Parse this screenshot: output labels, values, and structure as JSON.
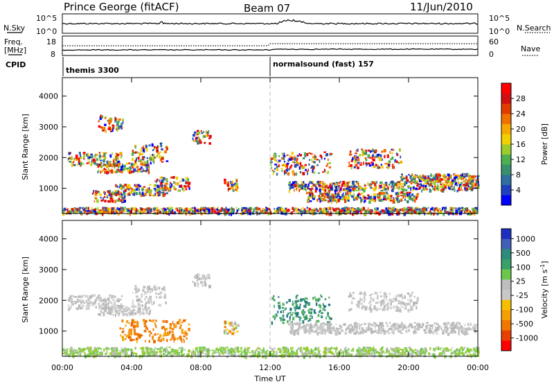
{
  "header": {
    "site": "Prince George (fitACF)",
    "beam": "Beam 07",
    "date": "11/Jun/2010"
  },
  "noise_panel": {
    "left_label": "N.Sky",
    "left_ticks": [
      "10^5",
      "10^0"
    ],
    "right_ticks": [
      "10^5",
      "10^0"
    ],
    "right_label": "N.Search"
  },
  "freq_panel": {
    "left_label_1": "Freq.",
    "left_label_2": "[MHz]",
    "left_ticks": [
      "18",
      "8"
    ],
    "right_ticks": [
      "60",
      "0"
    ],
    "right_label": "Nave"
  },
  "cpid": {
    "label": "CPID",
    "segments": [
      {
        "name": "themis 3300",
        "start_hour": 0
      },
      {
        "name": "normalsound (fast) 157",
        "start_hour": 12
      }
    ]
  },
  "chart_data": [
    {
      "type": "heatmap",
      "name": "power",
      "ylabel": "Slant Range [km]",
      "ylim": [
        180,
        4600
      ],
      "yticks": [
        "1000",
        "2000",
        "3000",
        "4000"
      ],
      "yticks_values": [
        1000,
        2000,
        3000,
        4000
      ],
      "xlim_hours": [
        0,
        24
      ],
      "colorbar": {
        "label": "Power [dB]",
        "ticks": [
          "4",
          "8",
          "12",
          "16",
          "20",
          "24",
          "28"
        ],
        "colors": [
          "#0000ff",
          "#1f3fbf",
          "#2e6fa0",
          "#3a8f6e",
          "#4caf50",
          "#9ccc2a",
          "#f0d000",
          "#f5a800",
          "#f07000",
          "#e03c00",
          "#d01010",
          "#ff0000"
        ]
      },
      "bands": [
        {
          "h0": 0.3,
          "h1": 3.4,
          "r0": 1750,
          "r1": 2200
        },
        {
          "h0": 2.0,
          "h1": 5.0,
          "r0": 1550,
          "r1": 1850
        },
        {
          "h0": 4.0,
          "h1": 6.0,
          "r0": 1850,
          "r1": 2500
        },
        {
          "h0": 1.7,
          "h1": 3.6,
          "r0": 600,
          "r1": 950
        },
        {
          "h0": 3.0,
          "h1": 6.0,
          "r0": 800,
          "r1": 1150
        },
        {
          "h0": 5.3,
          "h1": 7.3,
          "r0": 950,
          "r1": 1400
        },
        {
          "h0": 9.3,
          "h1": 10.1,
          "r0": 950,
          "r1": 1350
        },
        {
          "h0": 12.0,
          "h1": 15.5,
          "r0": 1500,
          "r1": 2200
        },
        {
          "h0": 13.0,
          "h1": 24.0,
          "r0": 950,
          "r1": 1250
        },
        {
          "h0": 14.0,
          "h1": 20.5,
          "r0": 600,
          "r1": 900
        },
        {
          "h0": 16.5,
          "h1": 19.5,
          "r0": 1700,
          "r1": 2300
        },
        {
          "h0": 19.5,
          "h1": 24.0,
          "r0": 1250,
          "r1": 1500
        },
        {
          "h0": 7.5,
          "h1": 8.5,
          "r0": 2500,
          "r1": 2900
        },
        {
          "h0": 2.0,
          "h1": 3.5,
          "r0": 2900,
          "r1": 3400
        },
        {
          "h0": 0.0,
          "h1": 24.0,
          "r0": 200,
          "r1": 400
        }
      ]
    },
    {
      "type": "heatmap",
      "name": "velocity",
      "ylabel": "Slant Range [km]",
      "xlabel": "Time UT",
      "ylim": [
        180,
        4600
      ],
      "yticks": [
        "1000",
        "2000",
        "3000",
        "4000"
      ],
      "yticks_values": [
        1000,
        2000,
        3000,
        4000
      ],
      "xlim_hours": [
        0,
        24
      ],
      "xticks": [
        "00:00",
        "04:00",
        "08:00",
        "12:00",
        "16:00",
        "20:00",
        "00:00"
      ],
      "xticks_values": [
        0,
        4,
        8,
        12,
        16,
        20,
        24
      ],
      "colorbar": {
        "label": "Velocity [m s^-1]",
        "ticks": [
          "1000",
          "500",
          "100",
          "25",
          "-25",
          "-100",
          "-500",
          "-1000"
        ],
        "colors": [
          "#1f2fc0",
          "#3f5fb8",
          "#2e8a7a",
          "#3aa06a",
          "#6cc84a",
          "#bdbdbd",
          "#c8c8c8",
          "#f5c000",
          "#f5a000",
          "#f07800",
          "#e84000",
          "#ff0000"
        ]
      },
      "bands": [
        {
          "h0": 0.3,
          "h1": 3.4,
          "r0": 1750,
          "r1": 2200,
          "v": "grey"
        },
        {
          "h0": 2.0,
          "h1": 5.0,
          "r0": 1550,
          "r1": 1850,
          "v": "grey"
        },
        {
          "h0": 4.0,
          "h1": 6.0,
          "r0": 1850,
          "r1": 2500,
          "v": "grey"
        },
        {
          "h0": 3.3,
          "h1": 7.3,
          "r0": 700,
          "r1": 1400,
          "v": "orange"
        },
        {
          "h0": 9.3,
          "h1": 10.1,
          "r0": 950,
          "r1": 1350,
          "v": "mixed"
        },
        {
          "h0": 12.0,
          "h1": 15.5,
          "r0": 1300,
          "r1": 2200,
          "v": "teal"
        },
        {
          "h0": 13.0,
          "h1": 24.0,
          "r0": 950,
          "r1": 1300,
          "v": "grey"
        },
        {
          "h0": 16.5,
          "h1": 20.5,
          "r0": 1700,
          "r1": 2300,
          "v": "grey"
        },
        {
          "h0": 7.5,
          "h1": 8.5,
          "r0": 2500,
          "r1": 2900,
          "v": "grey"
        },
        {
          "h0": 0.0,
          "h1": 24.0,
          "r0": 200,
          "r1": 500,
          "v": "green"
        }
      ]
    }
  ]
}
